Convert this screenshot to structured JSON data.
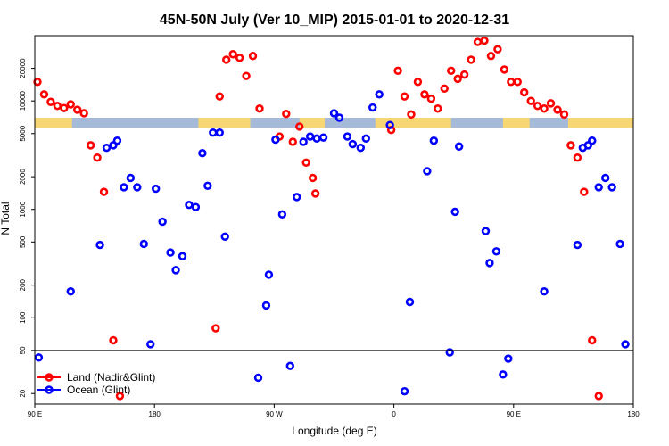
{
  "chart_data": {
    "type": "scatter",
    "title": "45N-50N July (Ver 10_MIP)   2015-01-01 to 2020-12-31",
    "xlabel": "Longitude (deg E)",
    "ylabel": "N Total",
    "scale": "log",
    "grid": false,
    "x_ticks": [
      {
        "value": 90,
        "label": "90 E"
      },
      {
        "value": 180,
        "label": "180"
      },
      {
        "value": 270,
        "label": "90 W"
      },
      {
        "value": 360,
        "label": "0"
      },
      {
        "value": 450,
        "label": "90 E"
      },
      {
        "value": 540,
        "label": "180"
      }
    ],
    "y_ticks": [
      20,
      50,
      100,
      200,
      500,
      1000,
      2000,
      5000,
      10000,
      20000
    ],
    "xlim": [
      90,
      540
    ],
    "ylim": [
      16,
      40000
    ],
    "ocean_band_ylim": [
      5600,
      7000
    ],
    "threshold_line": 50,
    "legend_position": "bottom-left",
    "colors": {
      "land": "#ff0000",
      "ocean": "#0000ff",
      "band_land": "#f7d774",
      "band_ocean": "#a5b9d8"
    },
    "series": [
      {
        "name": "Land (Nadir&Glint)",
        "color": "#ff0000",
        "points": [
          [
            92,
            15000
          ],
          [
            97,
            11500
          ],
          [
            102,
            9800
          ],
          [
            107,
            9000
          ],
          [
            112,
            8600
          ],
          [
            117,
            9300
          ],
          [
            122,
            8300
          ],
          [
            127,
            7700
          ],
          [
            132,
            3900
          ],
          [
            137,
            3000
          ],
          [
            142,
            1450
          ],
          [
            149,
            62
          ],
          [
            154,
            19
          ],
          [
            226,
            80
          ],
          [
            229,
            11000
          ],
          [
            234,
            24000
          ],
          [
            239,
            27000
          ],
          [
            244,
            25000
          ],
          [
            249,
            17000
          ],
          [
            254,
            26000
          ],
          [
            259,
            8500
          ],
          [
            274,
            4700
          ],
          [
            279,
            7600
          ],
          [
            284,
            4200
          ],
          [
            289,
            5800
          ],
          [
            294,
            2700
          ],
          [
            299,
            1950
          ],
          [
            301,
            1400
          ],
          [
            358,
            5400
          ],
          [
            363,
            19000
          ],
          [
            368,
            11000
          ],
          [
            373,
            7500
          ],
          [
            378,
            15000
          ],
          [
            383,
            11500
          ],
          [
            388,
            10500
          ],
          [
            393,
            8500
          ],
          [
            398,
            13000
          ],
          [
            403,
            19000
          ],
          [
            408,
            16000
          ],
          [
            413,
            17500
          ],
          [
            418,
            24000
          ],
          [
            423,
            35000
          ],
          [
            428,
            36000
          ],
          [
            433,
            26000
          ],
          [
            438,
            30000
          ],
          [
            443,
            19500
          ],
          [
            448,
            15000
          ],
          [
            453,
            15000
          ],
          [
            458,
            12000
          ],
          [
            463,
            10000
          ],
          [
            468,
            9000
          ],
          [
            473,
            8500
          ],
          [
            478,
            9500
          ],
          [
            483,
            8300
          ],
          [
            488,
            7500
          ],
          [
            493,
            3900
          ],
          [
            498,
            3000
          ],
          [
            503,
            1450
          ],
          [
            509,
            62
          ],
          [
            514,
            19
          ]
        ]
      },
      {
        "name": "Ocean (Glint)",
        "color": "#0000ff",
        "points": [
          [
            93,
            43
          ],
          [
            117,
            175
          ],
          [
            139,
            470
          ],
          [
            144,
            3700
          ],
          [
            149,
            3900
          ],
          [
            152,
            4300
          ],
          [
            157,
            1600
          ],
          [
            162,
            1950
          ],
          [
            167,
            1600
          ],
          [
            172,
            480
          ],
          [
            177,
            57
          ],
          [
            181,
            1550
          ],
          [
            186,
            770
          ],
          [
            192,
            400
          ],
          [
            196,
            275
          ],
          [
            201,
            370
          ],
          [
            206,
            1100
          ],
          [
            211,
            1050
          ],
          [
            216,
            3300
          ],
          [
            220,
            1650
          ],
          [
            224,
            5100
          ],
          [
            229,
            5100
          ],
          [
            233,
            560
          ],
          [
            258,
            28
          ],
          [
            264,
            130
          ],
          [
            266,
            250
          ],
          [
            271,
            4400
          ],
          [
            276,
            900
          ],
          [
            282,
            36
          ],
          [
            287,
            1300
          ],
          [
            292,
            4200
          ],
          [
            297,
            4700
          ],
          [
            302,
            4500
          ],
          [
            307,
            4600
          ],
          [
            315,
            7700
          ],
          [
            319,
            7000
          ],
          [
            325,
            4700
          ],
          [
            329,
            4000
          ],
          [
            335,
            3700
          ],
          [
            339,
            4500
          ],
          [
            344,
            8700
          ],
          [
            349,
            11500
          ],
          [
            357,
            6000
          ],
          [
            368,
            21
          ],
          [
            372,
            140
          ],
          [
            385,
            2250
          ],
          [
            390,
            4300
          ],
          [
            402,
            48
          ],
          [
            406,
            950
          ],
          [
            409,
            3800
          ],
          [
            429,
            630
          ],
          [
            432,
            320
          ],
          [
            437,
            410
          ],
          [
            442,
            30
          ],
          [
            446,
            42
          ],
          [
            473,
            175
          ],
          [
            498,
            470
          ],
          [
            502,
            3700
          ],
          [
            506,
            3900
          ],
          [
            509,
            4300
          ],
          [
            514,
            1600
          ],
          [
            519,
            1950
          ],
          [
            524,
            1600
          ],
          [
            530,
            480
          ],
          [
            534,
            57
          ]
        ]
      }
    ]
  }
}
